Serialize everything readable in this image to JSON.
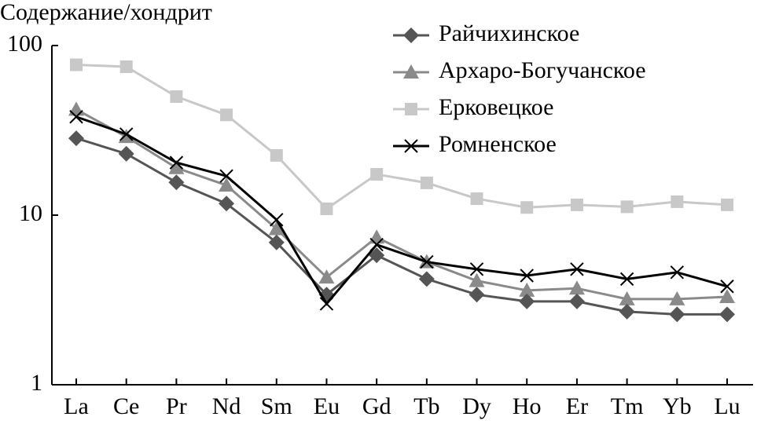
{
  "chart_data": {
    "type": "line",
    "y_label": "Содержание/хондрит",
    "categories": [
      "La",
      "Ce",
      "Pr",
      "Nd",
      "Sm",
      "Eu",
      "Gd",
      "Tb",
      "Dy",
      "Ho",
      "Er",
      "Tm",
      "Yb",
      "Lu"
    ],
    "series": [
      {
        "name": "Райчихинское",
        "color": "#555555",
        "marker": "diamond",
        "values": [
          28.4,
          23,
          15.6,
          11.7,
          6.9,
          3.4,
          5.8,
          4.2,
          3.4,
          3.1,
          3.1,
          2.7,
          2.6,
          2.6
        ]
      },
      {
        "name": "Архаро-Богучанское",
        "color": "#8a8a8a",
        "marker": "triangle",
        "values": [
          42,
          29,
          19,
          15,
          8.3,
          4.3,
          7.4,
          5.3,
          4.1,
          3.6,
          3.7,
          3.2,
          3.2,
          3.3
        ]
      },
      {
        "name": "Ерковецкое",
        "color": "#c8c8c8",
        "marker": "square",
        "values": [
          77,
          75,
          50,
          39,
          22.5,
          10.9,
          17.4,
          15.5,
          12.5,
          11.1,
          11.5,
          11.2,
          12,
          11.5
        ]
      },
      {
        "name": "Ромненское",
        "color": "#000000",
        "marker": "x",
        "values": [
          38,
          30,
          20.4,
          17,
          9.4,
          3.0,
          6.7,
          5.3,
          4.8,
          4.4,
          4.8,
          4.2,
          4.6,
          3.8
        ]
      }
    ],
    "log_scale": true,
    "ylim": [
      1,
      100
    ],
    "yticks": [
      1,
      10,
      100
    ],
    "grid": false,
    "legend": "upper right"
  }
}
